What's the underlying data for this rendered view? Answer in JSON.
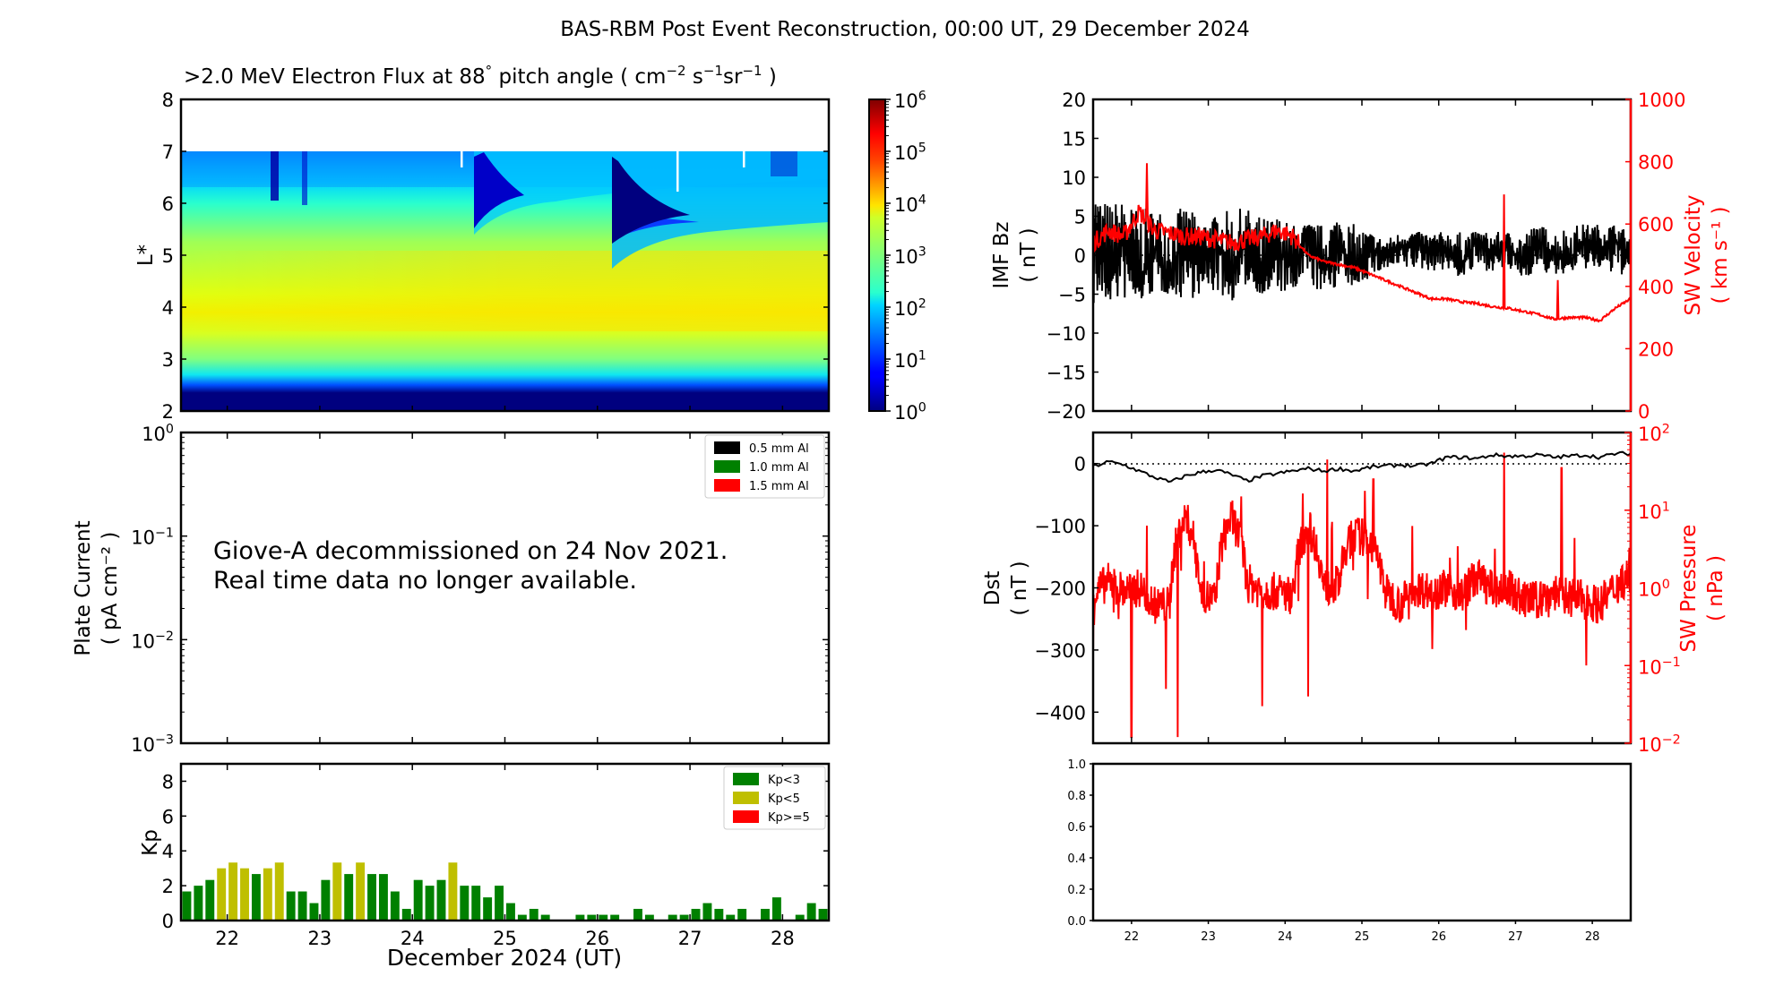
{
  "figure_title": "BAS-RBM Post Event Reconstruction, 00:00 UT, 29 December 2024",
  "chart_data": [
    {
      "id": "electron-flux",
      "type": "heatmap",
      "title": ">2.0 MeV Electron Flux at 88° pitch angle ( cm⁻² s⁻¹ sr⁻¹ )",
      "title_parts": {
        "main": ">2.0 MeV Electron Flux at 88",
        "deg": "°",
        "rest": " pitch angle ( cm",
        "e1": "−2",
        "s": " s",
        "e2": "−1",
        "sr": "sr",
        "e3": "−1",
        "close": " )"
      },
      "ylabel": "L*",
      "xlim": [
        21.5,
        28.5
      ],
      "ylim": [
        2,
        8
      ],
      "yticks": [
        "2",
        "3",
        "4",
        "5",
        "6",
        "7",
        "8"
      ],
      "data_top_L": 7,
      "colormap": "jet",
      "colorbar": {
        "scale": "log",
        "range": [
          1,
          1000000
        ],
        "tick_exponents": [
          "0",
          "1",
          "2",
          "3",
          "4",
          "5",
          "6"
        ]
      },
      "features": [
        {
          "description": "dropouts at high L after shocks",
          "day": 24.65,
          "min_L": 5.4
        },
        {
          "description": "dropouts at high L after shocks",
          "day": 26.15,
          "min_L": 4.8
        }
      ],
      "peak_log_flux_region": {
        "L_range": [
          4.2,
          4.8
        ],
        "log_flux": 4.0
      }
    },
    {
      "id": "plate-current",
      "type": "line",
      "ylabel": "Plate Current",
      "ylabel_units": "( pA cm⁻² )",
      "yscale": "log",
      "ylim": [
        0.001,
        1
      ],
      "ytick_exponents": [
        "0",
        "−1",
        "−2",
        "−3"
      ],
      "xlim": [
        21.5,
        28.5
      ],
      "legend": [
        {
          "label": "0.5 mm Al",
          "color": "#000000"
        },
        {
          "label": "1.0 mm Al",
          "color": "#008000"
        },
        {
          "label": "1.5 mm Al",
          "color": "#ff0000"
        }
      ],
      "legend_position": "top-right",
      "annotation": [
        "Giove-A decommissioned on 24 Nov 2021.",
        "Real time data no longer available."
      ],
      "series": []
    },
    {
      "id": "kp",
      "type": "bar",
      "ylabel": "Kp",
      "xlabel": "December 2024 (UT)",
      "xlim": [
        21.5,
        28.5
      ],
      "ylim": [
        0,
        9
      ],
      "yticks": [
        "0",
        "2",
        "4",
        "6",
        "8"
      ],
      "xticks": [
        "22",
        "23",
        "24",
        "25",
        "26",
        "27",
        "28"
      ],
      "bar_interval_hours": 3,
      "start_day": 21.5,
      "values": [
        1.67,
        2.0,
        2.33,
        3.0,
        3.33,
        3.0,
        2.67,
        3.0,
        3.33,
        1.67,
        1.67,
        1.0,
        2.33,
        3.33,
        2.67,
        3.33,
        2.67,
        2.67,
        1.67,
        0.67,
        2.33,
        2.0,
        2.33,
        3.33,
        2.0,
        2.0,
        1.33,
        2.0,
        1.0,
        0.33,
        0.67,
        0.33,
        0,
        0,
        0.33,
        0.33,
        0.33,
        0.33,
        0,
        0.67,
        0.33,
        0,
        0.33,
        0.33,
        0.67,
        1.0,
        0.67,
        0.33,
        0.67,
        0,
        0.67,
        1.33,
        0,
        0.33,
        1.0,
        0.67
      ],
      "legend": [
        {
          "label": "Kp<3",
          "color": "#008000"
        },
        {
          "label": "Kp<5",
          "color": "#bfbf00"
        },
        {
          "label": "Kp>=5",
          "color": "#ff0000"
        }
      ],
      "legend_position": "top-right"
    },
    {
      "id": "imf-sw-velocity",
      "type": "line",
      "xlim": [
        21.5,
        28.5
      ],
      "left_axis": {
        "label": "IMF Bz",
        "units": "( nT )",
        "ylim": [
          -20,
          20
        ],
        "yticks": [
          "20",
          "15",
          "10",
          "5",
          "0",
          "−5",
          "−10",
          "−15",
          "−20"
        ]
      },
      "right_axis": {
        "label": "SW Velocity",
        "units": "( km s⁻¹ )",
        "ylim": [
          0,
          1000
        ],
        "yticks": [
          "1000",
          "800",
          "600",
          "400",
          "200",
          "0"
        ],
        "color": "#ff0000"
      },
      "series": [
        {
          "name": "IMF Bz",
          "color": "#000000",
          "axis": "left",
          "x": [
            21.5,
            21.7,
            21.9,
            22.1,
            22.3,
            22.5,
            22.7,
            22.9,
            23.1,
            23.3,
            23.5,
            23.7,
            23.9,
            24.1,
            24.3,
            24.5,
            24.7,
            24.9,
            25.1,
            25.3,
            25.5,
            25.7,
            25.9,
            26.1,
            26.3,
            26.5,
            26.7,
            26.9,
            27.1,
            27.3,
            27.5,
            27.7,
            27.9,
            28.1,
            28.3,
            28.5
          ],
          "y": [
            4,
            -3,
            2,
            -4,
            1,
            -3,
            3,
            -2,
            2,
            -3,
            2,
            -4,
            1,
            -2,
            3,
            -2,
            2,
            -3,
            1,
            0,
            1,
            2,
            0,
            1,
            -1,
            2,
            0,
            1,
            -1,
            2,
            0,
            -1,
            2,
            1,
            2,
            0
          ],
          "envelope": {
            "min": [
              -7,
              -6,
              -6,
              -6,
              -5,
              -5,
              -6,
              -5,
              -5,
              -6,
              -4,
              -5,
              -5,
              -5,
              -4,
              -5,
              -4,
              -4,
              -3,
              -2,
              -2,
              -2,
              -2,
              -2,
              -3,
              -2,
              -2,
              -2,
              -3,
              -2,
              -3,
              -2,
              -2,
              -2,
              -3,
              -2
            ],
            "max": [
              8,
              7,
              7,
              6,
              6,
              6,
              6,
              5,
              5,
              6,
              6,
              5,
              5,
              4,
              4,
              4,
              5,
              4,
              3,
              2,
              3,
              3,
              3,
              3,
              3,
              3,
              3,
              3,
              3,
              4,
              3,
              4,
              4,
              4,
              4,
              3
            ]
          }
        },
        {
          "name": "SW Velocity",
          "color": "#ff0000",
          "axis": "right",
          "x": [
            21.5,
            21.7,
            21.9,
            22.1,
            22.3,
            22.5,
            22.7,
            22.9,
            23.1,
            23.3,
            23.5,
            23.7,
            23.9,
            24.1,
            24.3,
            24.5,
            24.7,
            24.9,
            25.1,
            25.3,
            25.5,
            25.7,
            25.9,
            26.1,
            26.3,
            26.5,
            26.7,
            26.9,
            27.1,
            27.3,
            27.5,
            27.7,
            27.9,
            28.1,
            28.3,
            28.5
          ],
          "y": [
            540,
            580,
            560,
            640,
            580,
            570,
            560,
            560,
            550,
            540,
            550,
            560,
            580,
            560,
            500,
            480,
            470,
            460,
            440,
            420,
            400,
            380,
            360,
            360,
            350,
            345,
            335,
            330,
            320,
            310,
            295,
            300,
            300,
            290,
            330,
            360
          ],
          "spikes": [
            {
              "x": 22.2,
              "y": 795
            },
            {
              "x": 26.85,
              "y": 695
            },
            {
              "x": 27.55,
              "y": 420
            }
          ]
        }
      ]
    },
    {
      "id": "dst-sw-pressure",
      "type": "line",
      "xlim": [
        21.5,
        28.5
      ],
      "left_axis": {
        "label": "Dst",
        "units": "( nT )",
        "ylim": [
          -450,
          50
        ],
        "yticks": [
          "0",
          "−100",
          "−200",
          "−300",
          "−400"
        ]
      },
      "right_axis": {
        "label": "SW Pressure",
        "units": "( nPa )",
        "scale": "log",
        "ylim": [
          0.01,
          100
        ],
        "ytick_exponents": [
          "2",
          "1",
          "0",
          "−1",
          "−2"
        ],
        "color": "#ff0000"
      },
      "series": [
        {
          "name": "Dst",
          "color": "#000000",
          "axis": "left",
          "x": [
            21.5,
            21.7,
            21.9,
            22.1,
            22.3,
            22.5,
            22.7,
            22.9,
            23.1,
            23.3,
            23.5,
            23.7,
            23.9,
            24.1,
            24.3,
            24.5,
            24.7,
            24.9,
            25.1,
            25.3,
            25.5,
            25.7,
            25.9,
            26.1,
            26.3,
            26.5,
            26.7,
            26.9,
            27.1,
            27.3,
            27.5,
            27.7,
            27.9,
            28.1,
            28.3,
            28.5
          ],
          "y": [
            -5,
            3,
            -2,
            -12,
            -22,
            -30,
            -20,
            -14,
            -10,
            -18,
            -28,
            -20,
            -16,
            -12,
            -8,
            -12,
            -8,
            -12,
            -6,
            -4,
            -2,
            -4,
            0,
            10,
            10,
            8,
            14,
            12,
            12,
            14,
            10,
            12,
            14,
            10,
            16,
            16
          ]
        },
        {
          "name": "SW Pressure",
          "color": "#ff0000",
          "axis": "right",
          "x": [
            21.5,
            21.7,
            21.9,
            22.1,
            22.3,
            22.5,
            22.7,
            22.9,
            23.1,
            23.3,
            23.5,
            23.7,
            23.9,
            24.1,
            24.3,
            24.5,
            24.7,
            24.9,
            25.1,
            25.3,
            25.5,
            25.7,
            25.9,
            26.1,
            26.3,
            26.5,
            26.7,
            26.9,
            27.1,
            27.3,
            27.5,
            27.7,
            27.9,
            28.1,
            28.3,
            28.5
          ],
          "y": [
            0.8,
            1.2,
            0.9,
            1.0,
            0.6,
            0.6,
            8,
            0.8,
            0.7,
            8,
            1.2,
            0.9,
            0.9,
            0.8,
            6,
            1.0,
            1.1,
            5,
            4,
            0.9,
            0.6,
            1.0,
            0.9,
            1.0,
            0.8,
            1.4,
            0.9,
            1.0,
            0.7,
            0.7,
            0.9,
            0.8,
            0.7,
            0.6,
            1.0,
            1.5
          ],
          "spikes_up": [
            {
              "x": 24.55,
              "y": 45
            },
            {
              "x": 25.15,
              "y": 25
            },
            {
              "x": 26.85,
              "y": 55
            },
            {
              "x": 27.6,
              "y": 35
            }
          ],
          "spikes_down": [
            {
              "x": 21.5,
              "y": 0.15
            },
            {
              "x": 22.0,
              "y": 0.012
            },
            {
              "x": 22.45,
              "y": 0.05
            },
            {
              "x": 22.6,
              "y": 0.012
            },
            {
              "x": 23.7,
              "y": 0.03
            },
            {
              "x": 24.3,
              "y": 0.04
            }
          ]
        }
      ],
      "reference_line": {
        "y": 0,
        "style": "dotted"
      }
    },
    {
      "id": "empty-panel",
      "type": "line",
      "xlim": [
        21.5,
        28.5
      ],
      "ylim": [
        0,
        1
      ],
      "yticks": [
        "0.0",
        "0.2",
        "0.4",
        "0.6",
        "0.8",
        "1.0"
      ],
      "xticks": [
        "22",
        "23",
        "24",
        "25",
        "26",
        "27",
        "28"
      ],
      "series": []
    }
  ]
}
